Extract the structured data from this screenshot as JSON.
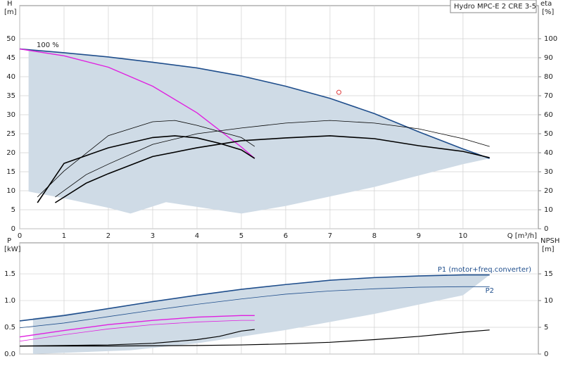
{
  "chart_data": [
    {
      "type": "line",
      "title": "Hydro MPC-E 2 CRE 3-5",
      "y_label": "H",
      "y_unit": "[m]",
      "y2_label": "eta",
      "y2_unit": "[%]",
      "x_label": "Q [m³/h]",
      "annotation": "100 %",
      "xlim": [
        0,
        11.7
      ],
      "xticks": [
        0,
        1,
        2,
        3,
        4,
        5,
        6,
        7,
        8,
        9,
        10
      ],
      "ylim": [
        0,
        58.7
      ],
      "yticks": [
        0,
        5,
        10,
        15,
        20,
        25,
        30,
        35,
        40,
        45,
        50
      ],
      "y2lim": [
        0,
        117.4
      ],
      "y2ticks": [
        0,
        10,
        20,
        30,
        40,
        50,
        60,
        70,
        80,
        90,
        100
      ],
      "grid": true,
      "area": {
        "color": "#cfdbe6",
        "x": [
          0.2,
          1,
          2,
          2.5,
          3.3,
          5,
          6,
          7,
          8,
          9,
          10,
          10.6
        ],
        "upper": [
          47,
          46.3,
          45.2,
          44.5,
          43.4,
          40.2,
          37.5,
          34.3,
          30.3,
          25.5,
          21,
          18.5
        ],
        "lower": [
          9.8,
          8,
          5.5,
          4,
          7,
          4,
          6,
          8.5,
          11,
          14,
          17,
          18.5
        ]
      },
      "series": [
        {
          "color": "#1f4e8c",
          "line_width": 1.6,
          "x": [
            0,
            1,
            2,
            3,
            4,
            5,
            6,
            7,
            8,
            9,
            10,
            10.6
          ],
          "values": [
            47.3,
            46.3,
            45.2,
            43.8,
            42.3,
            40.2,
            37.5,
            34.3,
            30.3,
            25.5,
            21,
            18.5
          ]
        },
        {
          "color": "#e020e0",
          "line_width": 1.4,
          "x": [
            0,
            1,
            2,
            3,
            4,
            5,
            5.3
          ],
          "values": [
            47.3,
            45.5,
            42.5,
            37.5,
            30.5,
            21.5,
            18.5
          ]
        },
        {
          "color": "#000000",
          "line_width": 1.6,
          "axis": "y2",
          "x": [
            0.4,
            1,
            2,
            3,
            3.5,
            4,
            4.5,
            5,
            5.3
          ],
          "values": [
            13.7,
            34.4,
            42.6,
            48,
            48.9,
            47.8,
            45,
            41.5,
            37
          ]
        },
        {
          "color": "#000000",
          "line_width": 0.8,
          "axis": "y2",
          "x": [
            0.4,
            1,
            2,
            3,
            3.5,
            4,
            5,
            5.3
          ],
          "values": [
            16.7,
            30.4,
            49,
            56.3,
            57,
            54.4,
            48,
            43.3
          ]
        },
        {
          "color": "#000000",
          "line_width": 1.6,
          "axis": "y2",
          "x": [
            0.8,
            1.5,
            2,
            3,
            4,
            5,
            6,
            7,
            8,
            9,
            10,
            10.6
          ],
          "values": [
            13.7,
            24,
            29,
            38,
            42.6,
            46.3,
            47.8,
            48.9,
            47.4,
            43.7,
            40.7,
            37.4
          ]
        },
        {
          "color": "#000000",
          "line_width": 0.8,
          "axis": "y2",
          "x": [
            0.8,
            1.5,
            2,
            3,
            4,
            5,
            6,
            7,
            8,
            9,
            10,
            10.6
          ],
          "values": [
            16.7,
            28.5,
            34,
            44.4,
            50,
            53,
            55.6,
            57,
            55.6,
            52.6,
            47.4,
            43.3
          ]
        }
      ],
      "duty_point": {
        "x": 7.2,
        "y": 35.9,
        "color": "#e04040"
      }
    },
    {
      "type": "line",
      "y_label": "P",
      "y_unit": "[kW]",
      "y2_label": "NPSH",
      "y2_unit": "[m]",
      "xlim": [
        0,
        11.7
      ],
      "ylim": [
        0,
        2.08
      ],
      "yticks": [
        {
          "value": 0,
          "label": "0.0"
        },
        0.5,
        {
          "value": 1,
          "label": "1.0"
        },
        1.5
      ],
      "y2lim": [
        0,
        20.8
      ],
      "y2ticks": [
        0,
        5,
        10,
        15
      ],
      "grid": true,
      "area": {
        "color": "#cfdbe6",
        "x": [
          0.3,
          2.5,
          4,
          6,
          8,
          10,
          10.6
        ],
        "upper": [
          0.67,
          0.9,
          1.1,
          1.3,
          1.43,
          1.48,
          1.48
        ],
        "lower": [
          0,
          0.07,
          0.2,
          0.45,
          0.75,
          1.1,
          1.48
        ]
      },
      "series": [
        {
          "name": "P1 (motor+freq.converter)",
          "color": "#1f4e8c",
          "line_width": 1.6,
          "x": [
            0,
            1,
            2,
            3,
            4,
            5,
            6,
            7,
            8,
            9,
            10,
            10.6
          ],
          "values": [
            0.62,
            0.72,
            0.85,
            0.98,
            1.1,
            1.21,
            1.3,
            1.38,
            1.43,
            1.46,
            1.48,
            1.48
          ]
        },
        {
          "name": "P2",
          "color": "#1f4e8c",
          "line_width": 0.8,
          "x": [
            0,
            1,
            2,
            3,
            4,
            5,
            6,
            7,
            8,
            9,
            10,
            10.6
          ],
          "values": [
            0.49,
            0.58,
            0.7,
            0.82,
            0.93,
            1.03,
            1.12,
            1.18,
            1.22,
            1.25,
            1.26,
            1.26
          ]
        },
        {
          "color": "#e020e0",
          "line_width": 1.4,
          "x": [
            0,
            1,
            2,
            3,
            4,
            5,
            5.3
          ],
          "values": [
            0.32,
            0.44,
            0.55,
            0.63,
            0.69,
            0.72,
            0.72
          ]
        },
        {
          "color": "#e020e0",
          "line_width": 0.8,
          "x": [
            0,
            1,
            2,
            3,
            4,
            5,
            5.3
          ],
          "values": [
            0.24,
            0.36,
            0.47,
            0.55,
            0.6,
            0.63,
            0.63
          ]
        },
        {
          "color": "#000000",
          "line_width": 1.2,
          "axis": "y2",
          "x": [
            0,
            1,
            2,
            3,
            4,
            4.5,
            5,
            5.3
          ],
          "values": [
            1.5,
            1.6,
            1.7,
            2,
            2.7,
            3.3,
            4.3,
            4.6
          ]
        },
        {
          "color": "#000000",
          "line_width": 1.2,
          "axis": "y2",
          "x": [
            0,
            2,
            4,
            5,
            6,
            7,
            8,
            9,
            10,
            10.6
          ],
          "values": [
            1.5,
            1.5,
            1.6,
            1.7,
            1.9,
            2.2,
            2.7,
            3.3,
            4.1,
            4.5
          ]
        }
      ]
    }
  ]
}
